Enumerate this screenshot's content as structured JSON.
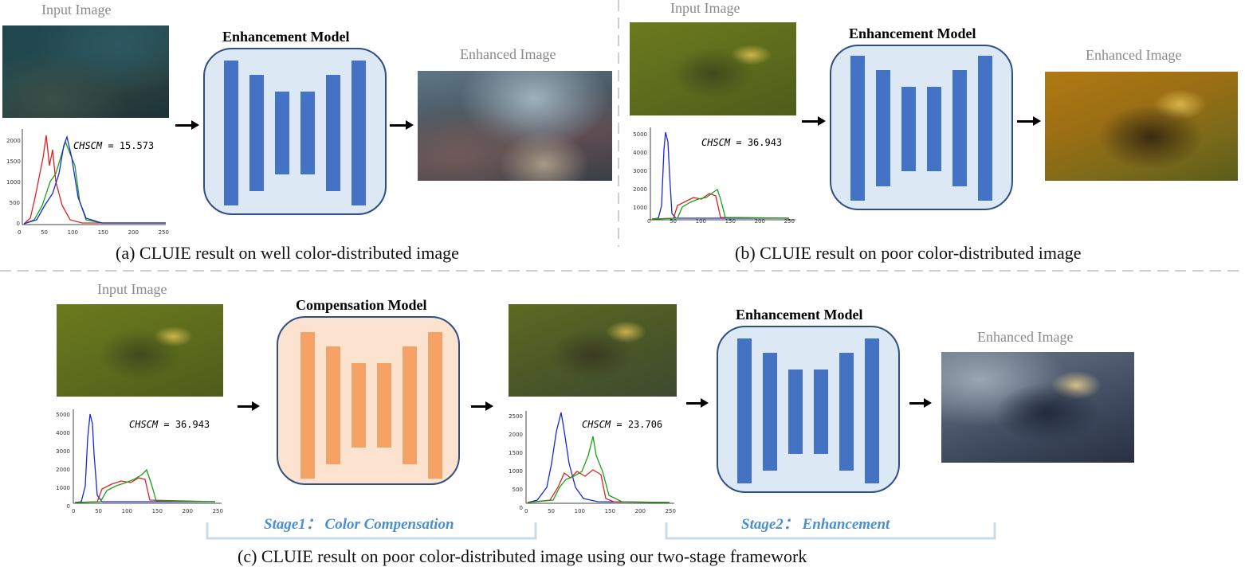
{
  "panel_a": {
    "input_label": "Input Image",
    "model_label": "Enhancement Model",
    "output_label": "Enhanced Image",
    "chscm_name": "CHSCM",
    "chscm_value": "15.573",
    "caption": "(a) CLUIE result on well color-distributed image",
    "hist_yticks": [
      "2000",
      "1500",
      "1000",
      "500",
      "0"
    ],
    "hist_xticks": [
      "0",
      "50",
      "100",
      "150",
      "200",
      "250"
    ]
  },
  "panel_b": {
    "input_label": "Input Image",
    "model_label": "Enhancement Model",
    "output_label": "Enhanced Image",
    "chscm_name": "CHSCM",
    "chscm_value": "36.943",
    "caption": "(b) CLUIE result on poor color-distributed image",
    "hist_yticks": [
      "5000",
      "4000",
      "3000",
      "2000",
      "1000",
      "0"
    ],
    "hist_xticks": [
      "0",
      "50",
      "100",
      "150",
      "200",
      "250"
    ]
  },
  "panel_c": {
    "input_label": "Input Image",
    "compensation_label": "Compensation Model",
    "model_label": "Enhancement Model",
    "output_label": "Enhanced Image",
    "chscm_name": "CHSCM",
    "chscm_input_value": "36.943",
    "chscm_mid_value": "23.706",
    "stage1": "Stage1： Color Compensation",
    "stage2": "Stage2： Enhancement",
    "caption": "(c) CLUIE result on poor color-distributed image using our two-stage framework",
    "hist_in_yticks": [
      "5000",
      "4000",
      "3000",
      "2000",
      "1000",
      "0"
    ],
    "hist_mid_yticks": [
      "2500",
      "2000",
      "1500",
      "1000",
      "500",
      "0"
    ],
    "hist_xticks": [
      "0",
      "50",
      "100",
      "150",
      "200",
      "250"
    ]
  },
  "colors": {
    "model_blue_fill": "#dde8f5",
    "model_orange_fill": "#fbe3cf",
    "bar_blue": "#4472c4",
    "bar_orange": "#f4a266",
    "stage_text": "#4a8fcf",
    "divider": "#c8c8c8"
  }
}
